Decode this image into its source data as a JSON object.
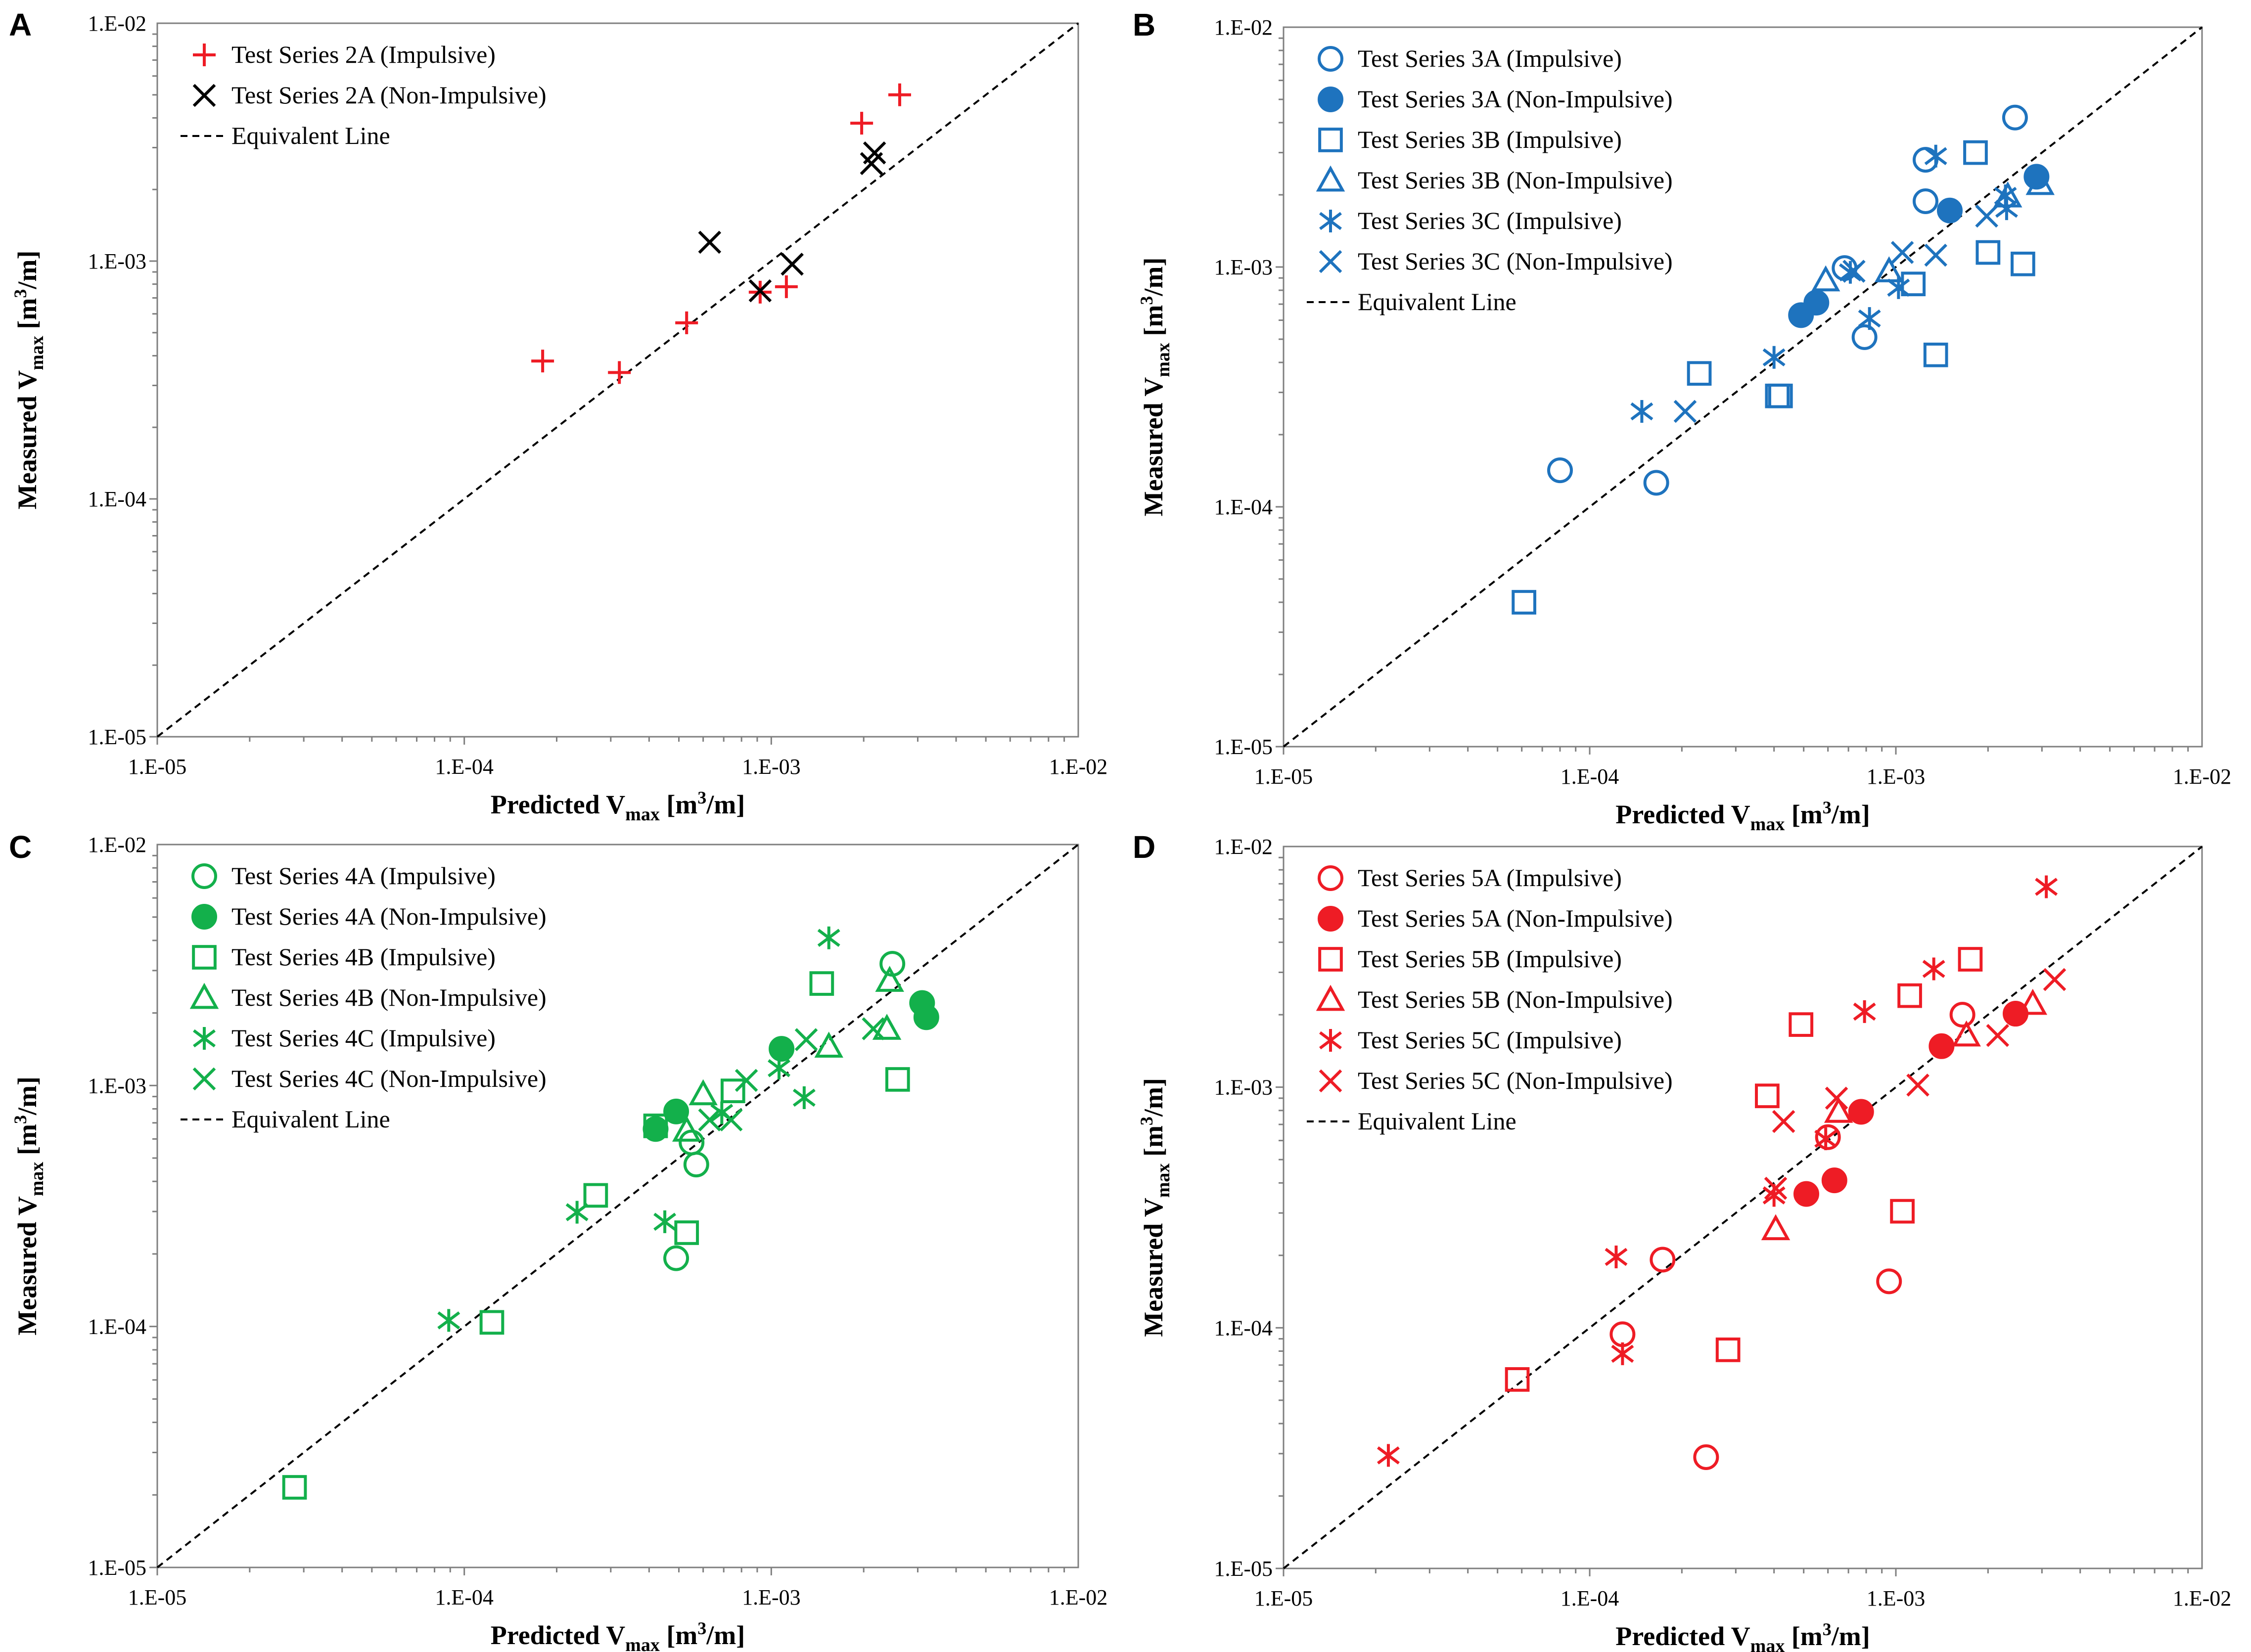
{
  "figure": {
    "panels": [
      "A",
      "B",
      "C",
      "D"
    ]
  },
  "chart_data": [
    {
      "panel": "A",
      "type": "scatter",
      "xscale": "log",
      "yscale": "log",
      "xlim": [
        1e-05,
        0.01
      ],
      "ylim": [
        1e-05,
        0.01
      ],
      "xticks": [
        "1.E-05",
        "1.E-04",
        "1.E-03",
        "1.E-02"
      ],
      "yticks": [
        "1.E-05",
        "1.E-04",
        "1.E-03",
        "1.E-02"
      ],
      "xlabel": {
        "main": "Predicted V",
        "sub": "max",
        "unit_pre": " [m",
        "unit_sup": "3",
        "unit_post": "/m]"
      },
      "ylabel": {
        "main": "Measured V",
        "sub": "max",
        "unit_pre": " [m",
        "unit_sup": "3",
        "unit_post": "/m]"
      },
      "legend_position": "top-left",
      "color": "#ee1c25",
      "equivalent_line_label": "Equivalent Line",
      "series": [
        {
          "name": "Test Series 2A (Impulsive)",
          "marker": "plus",
          "color": "#ee1c25",
          "points": [
            [
              0.00018,
              0.00038
            ],
            [
              0.00032,
              0.00034
            ],
            [
              0.00053,
              0.00055
            ],
            [
              0.00092,
              0.00074
            ],
            [
              0.00112,
              0.00078
            ],
            [
              0.00197,
              0.0038
            ],
            [
              0.00262,
              0.005
            ]
          ]
        },
        {
          "name": "Test Series 2A (Non-Impulsive)",
          "marker": "x",
          "color": "#000000",
          "points": [
            [
              0.00063,
              0.0012
            ],
            [
              0.00092,
              0.00075
            ],
            [
              0.00117,
              0.00097
            ],
            [
              0.00212,
              0.00257
            ],
            [
              0.00217,
              0.00285
            ]
          ]
        }
      ]
    },
    {
      "panel": "B",
      "type": "scatter",
      "xscale": "log",
      "yscale": "log",
      "xlim": [
        1e-05,
        0.01
      ],
      "ylim": [
        1e-05,
        0.01
      ],
      "xticks": [
        "1.E-05",
        "1.E-04",
        "1.E-03",
        "1.E-02"
      ],
      "yticks": [
        "1.E-05",
        "1.E-04",
        "1.E-03",
        "1.E-02"
      ],
      "xlabel": {
        "main": "Predicted V",
        "sub": "max",
        "unit_pre": " [m",
        "unit_sup": "3",
        "unit_post": "/m]"
      },
      "ylabel": {
        "main": "Measured V",
        "sub": "max",
        "unit_pre": " [m",
        "unit_sup": "3",
        "unit_post": "/m]"
      },
      "legend_position": "top-left",
      "color": "#1e73be",
      "equivalent_line_label": "Equivalent Line",
      "series": [
        {
          "name": "Test Series 3A (Impulsive)",
          "marker": "circle",
          "color": "#1e73be",
          "points": [
            [
              8e-05,
              0.000142
            ],
            [
              0.000165,
              0.000126
            ],
            [
              0.00068,
              0.00099
            ],
            [
              0.00079,
              0.00051
            ],
            [
              0.00125,
              0.0028
            ],
            [
              0.00125,
              0.00188
            ],
            [
              0.00245,
              0.0042
            ]
          ]
        },
        {
          "name": "Test Series 3A (Non-Impulsive)",
          "marker": "circle-filled",
          "color": "#1e73be",
          "points": [
            [
              0.00049,
              0.00063
            ],
            [
              0.00055,
              0.00071
            ],
            [
              0.0015,
              0.00172
            ],
            [
              0.00288,
              0.00238
            ]
          ]
        },
        {
          "name": "Test Series 3B (Impulsive)",
          "marker": "square",
          "color": "#1e73be",
          "points": [
            [
              6.1e-05,
              4e-05
            ],
            [
              0.000228,
              0.00036
            ],
            [
              0.00041,
              0.00029
            ],
            [
              0.00042,
              0.00029
            ],
            [
              0.00114,
              0.00085
            ],
            [
              0.00135,
              0.00043
            ],
            [
              0.00182,
              0.003
            ],
            [
              0.002,
              0.00115
            ],
            [
              0.0026,
              0.00103
            ]
          ]
        },
        {
          "name": "Test Series 3B (Non-Impulsive)",
          "marker": "triangle",
          "color": "#1e73be",
          "points": [
            [
              0.00059,
              0.00088
            ],
            [
              0.00095,
              0.00096
            ],
            [
              0.00232,
              0.00197
            ],
            [
              0.00296,
              0.00222
            ]
          ]
        },
        {
          "name": "Test Series 3C (Impulsive)",
          "marker": "asterisk",
          "color": "#1e73be",
          "points": [
            [
              0.000148,
              0.00025
            ],
            [
              0.0004,
              0.00042
            ],
            [
              0.00071,
              0.00095
            ],
            [
              0.00082,
              0.00061
            ],
            [
              0.00102,
              0.00082
            ],
            [
              0.00135,
              0.0029
            ],
            [
              0.00228,
              0.00198
            ],
            [
              0.0023,
              0.00175
            ]
          ]
        },
        {
          "name": "Test Series 3C (Non-Impulsive)",
          "marker": "x",
          "color": "#1e73be",
          "points": [
            [
              0.000205,
              0.00025
            ],
            [
              0.00073,
              0.00096
            ],
            [
              0.00105,
              0.00115
            ],
            [
              0.00135,
              0.00112
            ],
            [
              0.00198,
              0.00163
            ]
          ]
        }
      ]
    },
    {
      "panel": "C",
      "type": "scatter",
      "xscale": "log",
      "yscale": "log",
      "xlim": [
        1e-05,
        0.01
      ],
      "ylim": [
        1e-05,
        0.01
      ],
      "xticks": [
        "1.E-05",
        "1.E-04",
        "1.E-03",
        "1.E-02"
      ],
      "yticks": [
        "1.E-05",
        "1.E-04",
        "1.E-03",
        "1.E-02"
      ],
      "xlabel": {
        "main": "Predicted V",
        "sub": "max",
        "unit_pre": " [m",
        "unit_sup": "3",
        "unit_post": "/m]"
      },
      "ylabel": {
        "main": "Measured V",
        "sub": "max",
        "unit_pre": " [m",
        "unit_sup": "3",
        "unit_post": "/m]"
      },
      "legend_position": "top-left",
      "color": "#13b04b",
      "equivalent_line_label": "Equivalent Line",
      "series": [
        {
          "name": "Test Series 4A (Impulsive)",
          "marker": "circle",
          "color": "#13b04b",
          "points": [
            [
              0.00049,
              0.000192
            ],
            [
              0.00055,
              0.00058
            ],
            [
              0.00057,
              0.00047
            ],
            [
              0.00248,
              0.0032
            ]
          ]
        },
        {
          "name": "Test Series 4A (Non-Impulsive)",
          "marker": "circle-filled",
          "color": "#13b04b",
          "points": [
            [
              0.00042,
              0.00066
            ],
            [
              0.00049,
              0.00078
            ],
            [
              0.00108,
              0.00142
            ],
            [
              0.0031,
              0.0022
            ],
            [
              0.0032,
              0.00192
            ]
          ]
        },
        {
          "name": "Test Series 4B (Impulsive)",
          "marker": "square",
          "color": "#13b04b",
          "points": [
            [
              2.8e-05,
              2.15e-05
            ],
            [
              0.000123,
              0.000104
            ],
            [
              0.000268,
              0.00035
            ],
            [
              0.00042,
              0.00068
            ],
            [
              0.00053,
              0.000245
            ],
            [
              0.00075,
              0.00095
            ],
            [
              0.00146,
              0.00265
            ],
            [
              0.00258,
              0.00106
            ]
          ]
        },
        {
          "name": "Test Series 4B (Non-Impulsive)",
          "marker": "triangle",
          "color": "#13b04b",
          "points": [
            [
              0.00053,
              0.00065
            ],
            [
              0.0006,
              0.00092
            ],
            [
              0.00154,
              0.00145
            ],
            [
              0.00238,
              0.00172
            ],
            [
              0.00243,
              0.00272
            ]
          ]
        },
        {
          "name": "Test Series 4C (Impulsive)",
          "marker": "asterisk",
          "color": "#13b04b",
          "points": [
            [
              8.9e-05,
              0.000106
            ],
            [
              0.000233,
              0.000298
            ],
            [
              0.00045,
              0.000272
            ],
            [
              0.00069,
              0.00077
            ],
            [
              0.00106,
              0.00118
            ],
            [
              0.00128,
              0.00089
            ],
            [
              0.00154,
              0.0041
            ]
          ]
        },
        {
          "name": "Test Series 4C (Non-Impulsive)",
          "marker": "x",
          "color": "#13b04b",
          "points": [
            [
              0.00063,
              0.00072
            ],
            [
              0.00074,
              0.00072
            ],
            [
              0.00083,
              0.00105
            ],
            [
              0.0013,
              0.00155
            ],
            [
              0.00215,
              0.00172
            ]
          ]
        }
      ]
    },
    {
      "panel": "D",
      "type": "scatter",
      "xscale": "log",
      "yscale": "log",
      "xlim": [
        1e-05,
        0.01
      ],
      "ylim": [
        1e-05,
        0.01
      ],
      "xticks": [
        "1.E-05",
        "1.E-04",
        "1.E-03",
        "1.E-02"
      ],
      "yticks": [
        "1.E-05",
        "1.E-04",
        "1.E-03",
        "1.E-02"
      ],
      "xlabel": {
        "main": "Predicted V",
        "sub": "max",
        "unit_pre": " [m",
        "unit_sup": "3",
        "unit_post": "/m]"
      },
      "ylabel": {
        "main": "Measured V",
        "sub": "max",
        "unit_pre": " [m",
        "unit_sup": "3",
        "unit_post": "/m]"
      },
      "legend_position": "top-left",
      "color": "#ee1c25",
      "equivalent_line_label": "Equivalent Line",
      "series": [
        {
          "name": "Test Series 5A (Impulsive)",
          "marker": "circle",
          "color": "#ee1c25",
          "points": [
            [
              0.000128,
              9.4e-05
            ],
            [
              0.000173,
              0.000192
            ],
            [
              0.00024,
              2.9e-05
            ],
            [
              0.0006,
              0.00062
            ],
            [
              0.00095,
              0.000156
            ],
            [
              0.00165,
              0.002
            ]
          ]
        },
        {
          "name": "Test Series 5A (Non-Impulsive)",
          "marker": "circle-filled",
          "color": "#ee1c25",
          "points": [
            [
              0.00051,
              0.00036
            ],
            [
              0.00063,
              0.00041
            ],
            [
              0.00077,
              0.00079
            ],
            [
              0.00141,
              0.00148
            ],
            [
              0.00246,
              0.00202
            ]
          ]
        },
        {
          "name": "Test Series 5B (Impulsive)",
          "marker": "square",
          "color": "#ee1c25",
          "points": [
            [
              5.8e-05,
              6.1e-05
            ],
            [
              0.000283,
              8.1e-05
            ],
            [
              0.00038,
              0.00092
            ],
            [
              0.00049,
              0.00182
            ],
            [
              0.00105,
              0.000305
            ],
            [
              0.00111,
              0.0024
            ],
            [
              0.00175,
              0.0034
            ]
          ]
        },
        {
          "name": "Test Series 5B (Non-Impulsive)",
          "marker": "triangle",
          "color": "#ee1c25",
          "points": [
            [
              0.000405,
              0.000257
            ],
            [
              0.00065,
              0.00079
            ],
            [
              0.0017,
              0.00164
            ],
            [
              0.0028,
              0.00222
            ]
          ]
        },
        {
          "name": "Test Series 5C (Impulsive)",
          "marker": "asterisk",
          "color": "#ee1c25",
          "points": [
            [
              2.2e-05,
              2.95e-05
            ],
            [
              0.000122,
              0.000197
            ],
            [
              0.000128,
              7.8e-05
            ],
            [
              0.0004,
              0.000355
            ],
            [
              0.00059,
              0.00061
            ],
            [
              0.00079,
              0.00206
            ],
            [
              0.00133,
              0.0031
            ],
            [
              0.0031,
              0.0068
            ]
          ]
        },
        {
          "name": "Test Series 5C (Non-Impulsive)",
          "marker": "x",
          "color": "#ee1c25",
          "points": [
            [
              0.000405,
              0.00038
            ],
            [
              0.00043,
              0.00072
            ],
            [
              0.00064,
              0.0009
            ],
            [
              0.00118,
              0.00102
            ],
            [
              0.00215,
              0.00164
            ],
            [
              0.0033,
              0.0028
            ]
          ]
        }
      ]
    }
  ]
}
